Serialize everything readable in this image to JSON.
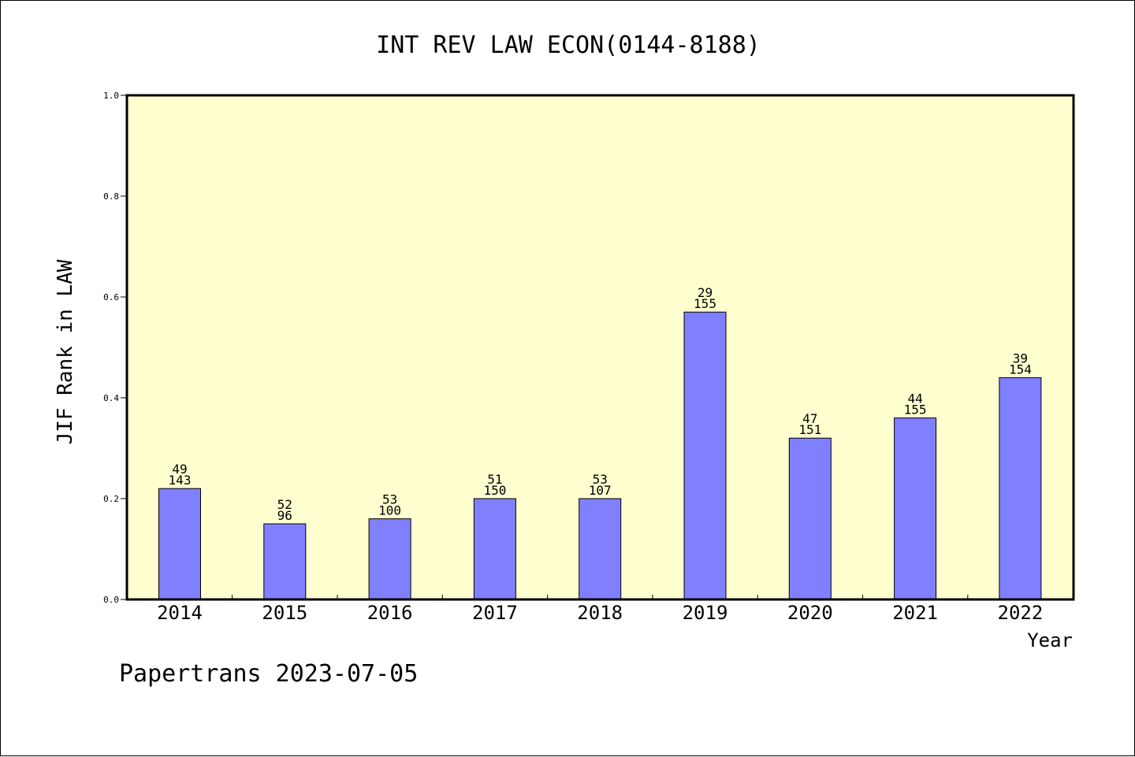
{
  "chart_data": {
    "type": "bar",
    "title": "INT REV LAW ECON(0144-8188)",
    "xlabel": "Year",
    "ylabel": "JIF Rank in LAW",
    "ylim": [
      0.0,
      1.0
    ],
    "yticks": [
      "0.0",
      "0.2",
      "0.4",
      "0.6",
      "0.8",
      "1.0"
    ],
    "categories": [
      "2014",
      "2015",
      "2016",
      "2017",
      "2018",
      "2019",
      "2020",
      "2021",
      "2022"
    ],
    "values": [
      0.22,
      0.15,
      0.16,
      0.2,
      0.2,
      0.57,
      0.32,
      0.36,
      0.44
    ],
    "rank_labels": [
      {
        "rank": "49",
        "total": "143"
      },
      {
        "rank": "52",
        "total": "96"
      },
      {
        "rank": "53",
        "total": "100"
      },
      {
        "rank": "51",
        "total": "150"
      },
      {
        "rank": "53",
        "total": "107"
      },
      {
        "rank": "29",
        "total": "155"
      },
      {
        "rank": "47",
        "total": "151"
      },
      {
        "rank": "44",
        "total": "155"
      },
      {
        "rank": "39",
        "total": "154"
      }
    ],
    "colors": {
      "plot_background": "#ffffd0",
      "bar_fill": "#8080ff",
      "bar_stroke": "#000000"
    },
    "grid": false,
    "legend": "none"
  },
  "footer": {
    "text": "Papertrans 2023-07-05"
  }
}
